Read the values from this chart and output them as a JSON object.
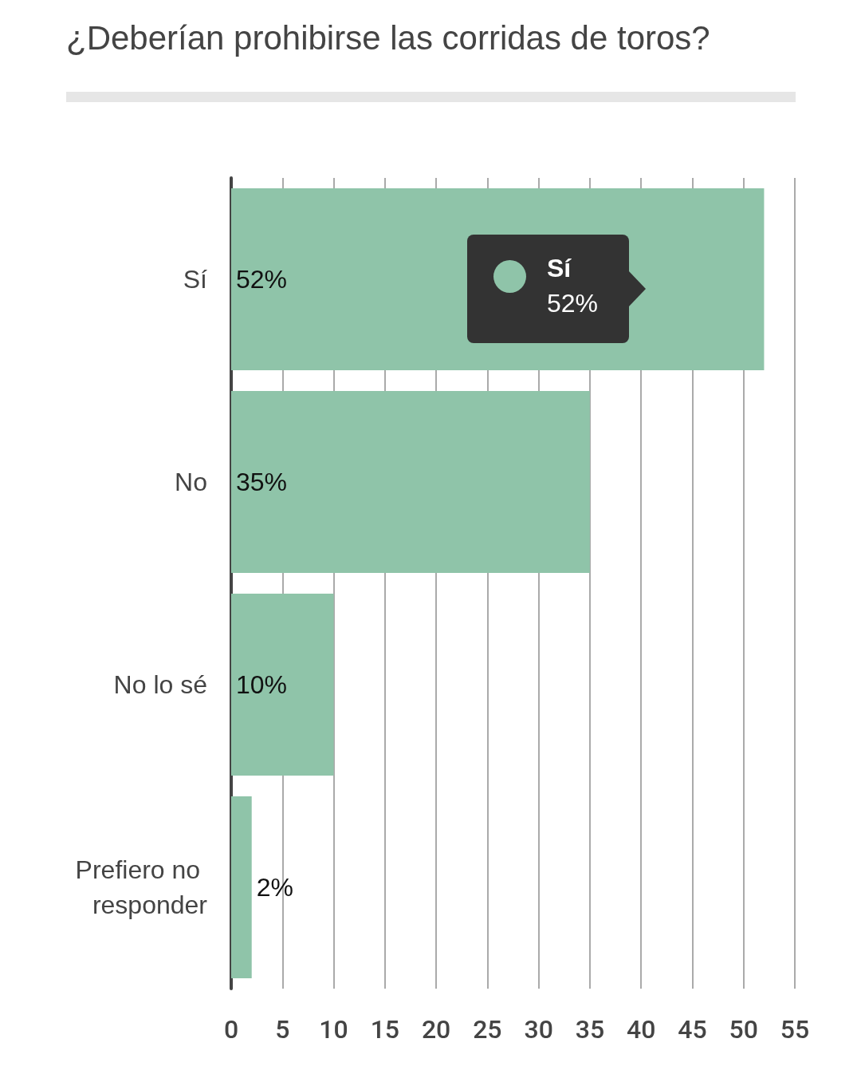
{
  "chart_data": {
    "type": "bar",
    "orientation": "horizontal",
    "title": "¿Deberían prohibirse las corridas de toros?",
    "categories": [
      "Sí",
      "No",
      "No lo sé",
      "Prefiero no responder"
    ],
    "values": [
      52,
      35,
      10,
      2
    ],
    "value_labels": [
      "52%",
      "35%",
      "10%",
      "2%"
    ],
    "color": "#8fc4a9",
    "xlim": [
      0,
      55
    ],
    "xticks": [
      0,
      5,
      10,
      15,
      20,
      25,
      30,
      35,
      40,
      45,
      50,
      55
    ],
    "grid": "x",
    "annotations": [
      "Sí",
      "52%"
    ]
  }
}
